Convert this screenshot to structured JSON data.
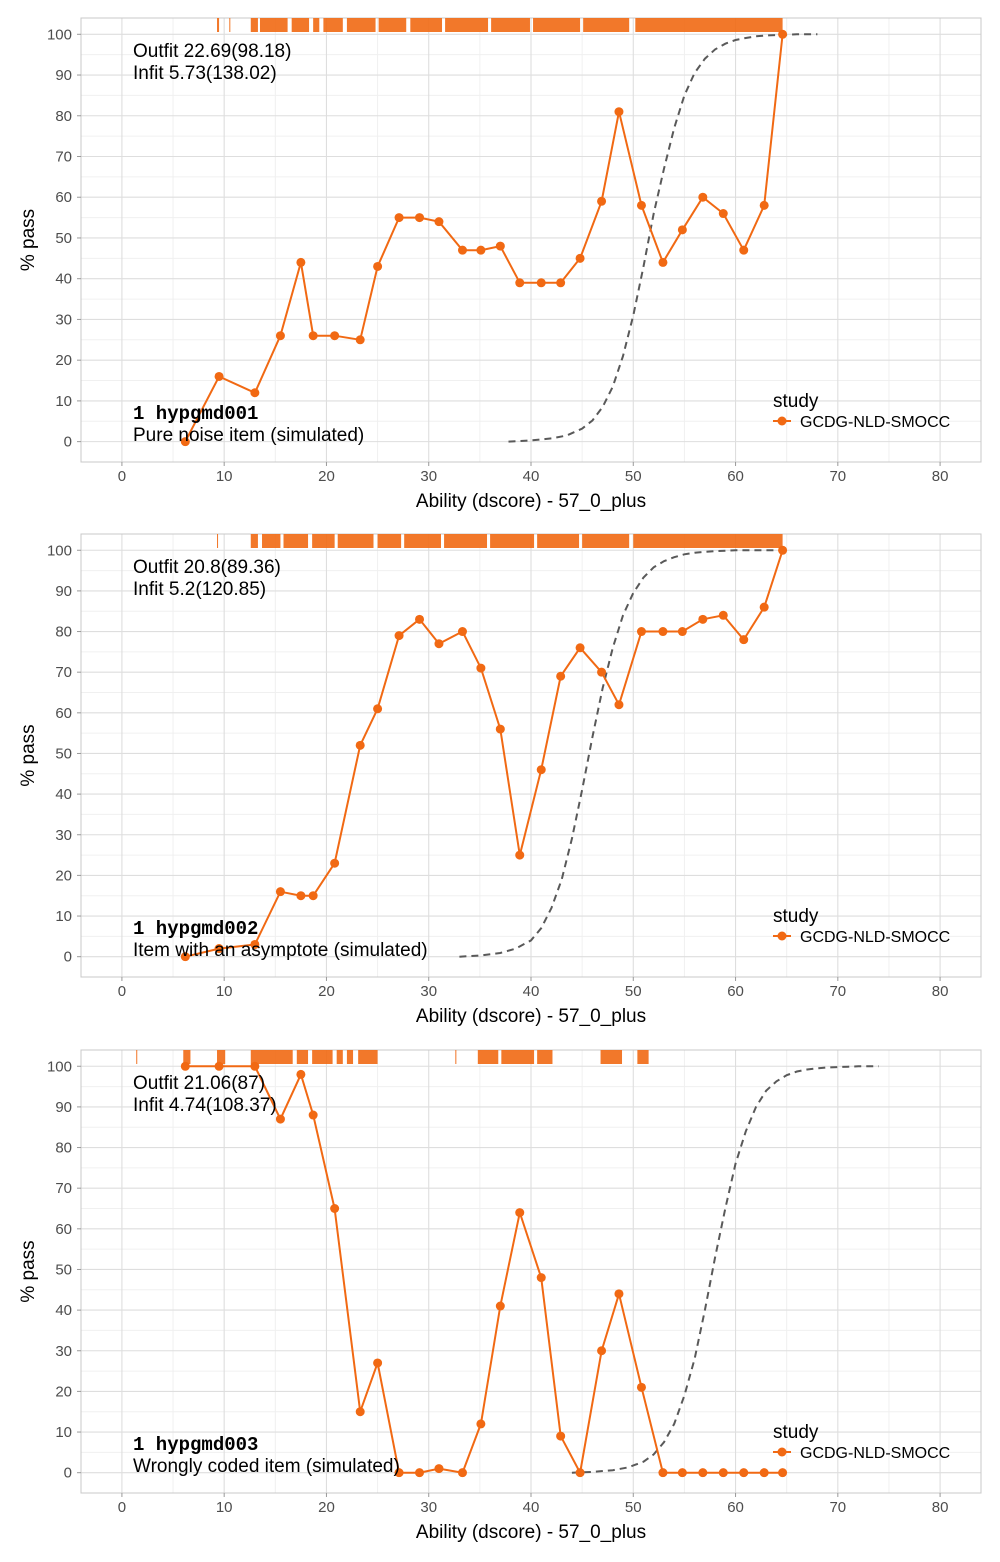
{
  "chart_data": [
    {
      "type": "line",
      "item_number": "1",
      "item_code": "hypgmd001",
      "item_label": "Pure noise item (simulated)",
      "outfit_text": "Outfit 22.69(98.18)",
      "infit_text": "Infit  5.73(138.02)",
      "xlabel": "Ability (dscore) - 57_0_plus",
      "ylabel": "% pass",
      "xlim": [
        -4,
        84
      ],
      "ylim": [
        -5,
        104
      ],
      "xticks": [
        0,
        10,
        20,
        30,
        40,
        50,
        60,
        70,
        80
      ],
      "yticks": [
        0,
        10,
        20,
        30,
        40,
        50,
        60,
        70,
        80,
        90,
        100
      ],
      "grid": true,
      "legend": {
        "title": "study",
        "entries": [
          "GCDG-NLD-SMOCC"
        ],
        "position": "right"
      },
      "series": [
        {
          "name": "GCDG-NLD-SMOCC",
          "color": "#f16913",
          "x": [
            6.2,
            9.5,
            13.0,
            15.5,
            17.5,
            18.7,
            20.8,
            23.3,
            25.0,
            27.1,
            29.1,
            31.0,
            33.3,
            35.1,
            37.0,
            38.9,
            41.0,
            42.9,
            44.8,
            46.9,
            48.6,
            50.8,
            52.9,
            54.8,
            56.8,
            58.8,
            60.8,
            62.8,
            64.6
          ],
          "values": [
            0,
            16,
            12,
            26,
            44,
            26,
            26,
            25,
            43,
            55,
            55,
            54,
            47,
            47,
            48,
            39,
            39,
            39,
            45,
            59,
            81,
            58,
            44,
            52,
            60,
            56,
            47,
            58,
            100
          ]
        },
        {
          "name": "model",
          "style": "dashed",
          "color": "#595959",
          "x": [
            37.8,
            40,
            42,
            43.5,
            45,
            46,
            47,
            48,
            49,
            50,
            51,
            52,
            53,
            54,
            55,
            56,
            57,
            58,
            59,
            60,
            61,
            62,
            63,
            64,
            65,
            66,
            68
          ],
          "values": [
            0,
            0.3,
            0.8,
            1.5,
            3.2,
            5.2,
            8.5,
            13.5,
            21,
            31,
            43,
            56,
            67,
            77,
            85,
            90.5,
            94,
            96.3,
            97.7,
            98.6,
            99.1,
            99.5,
            99.7,
            99.8,
            99.9,
            100,
            100
          ]
        }
      ],
      "rug": [
        {
          "from": 9.3,
          "to": 9.5
        },
        {
          "from": 10.5,
          "to": 10.6
        },
        {
          "from": 12.6,
          "to": 13.3
        },
        {
          "from": 13.5,
          "to": 16.2
        },
        {
          "from": 16.6,
          "to": 18.3
        },
        {
          "from": 18.7,
          "to": 19.3
        },
        {
          "from": 19.7,
          "to": 21.6
        },
        {
          "from": 22.0,
          "to": 24.8
        },
        {
          "from": 25.1,
          "to": 27.8
        },
        {
          "from": 28.2,
          "to": 31.3
        },
        {
          "from": 31.6,
          "to": 35.8
        },
        {
          "from": 36.1,
          "to": 39.9
        },
        {
          "from": 40.2,
          "to": 44.8
        },
        {
          "from": 45.1,
          "to": 49.6
        },
        {
          "from": 50.2,
          "to": 64.6
        }
      ]
    },
    {
      "type": "line",
      "item_number": "1",
      "item_code": "hypgmd002",
      "item_label": "Item with an asymptote (simulated)",
      "outfit_text": "Outfit 20.8(89.36)",
      "infit_text": "Infit  5.2(120.85)",
      "xlabel": "Ability (dscore) - 57_0_plus",
      "ylabel": "% pass",
      "xlim": [
        -4,
        84
      ],
      "ylim": [
        -5,
        104
      ],
      "xticks": [
        0,
        10,
        20,
        30,
        40,
        50,
        60,
        70,
        80
      ],
      "yticks": [
        0,
        10,
        20,
        30,
        40,
        50,
        60,
        70,
        80,
        90,
        100
      ],
      "grid": true,
      "legend": {
        "title": "study",
        "entries": [
          "GCDG-NLD-SMOCC"
        ],
        "position": "right"
      },
      "series": [
        {
          "name": "GCDG-NLD-SMOCC",
          "color": "#f16913",
          "x": [
            6.2,
            9.5,
            13.0,
            15.5,
            17.5,
            18.7,
            20.8,
            23.3,
            25.0,
            27.1,
            29.1,
            31.0,
            33.3,
            35.1,
            37.0,
            38.9,
            41.0,
            42.9,
            44.8,
            46.9,
            48.6,
            50.8,
            52.9,
            54.8,
            56.8,
            58.8,
            60.8,
            62.8,
            64.6
          ],
          "values": [
            0,
            2,
            3,
            16,
            15,
            15,
            23,
            52,
            61,
            79,
            83,
            77,
            80,
            71,
            56,
            25,
            46,
            69,
            76,
            70,
            62,
            80,
            80,
            80,
            83,
            84,
            78,
            86,
            100
          ]
        },
        {
          "name": "model",
          "style": "dashed",
          "color": "#595959",
          "x": [
            33,
            35,
            37,
            38.5,
            40,
            41,
            42,
            43,
            44,
            45,
            46,
            47,
            48,
            49,
            50,
            51,
            52,
            53,
            54,
            55,
            56,
            57,
            58,
            59,
            60,
            62,
            64
          ],
          "values": [
            0,
            0.3,
            0.9,
            2,
            4,
            7,
            12,
            19,
            29,
            41,
            54,
            66,
            76,
            84,
            89.5,
            93.3,
            95.8,
            97.3,
            98.3,
            99,
            99.4,
            99.6,
            99.8,
            99.9,
            100,
            100,
            100
          ]
        }
      ],
      "rug": [
        {
          "from": 9.3,
          "to": 9.4
        },
        {
          "from": 12.6,
          "to": 13.3
        },
        {
          "from": 13.7,
          "to": 15.5
        },
        {
          "from": 15.8,
          "to": 18.2
        },
        {
          "from": 18.6,
          "to": 20.8
        },
        {
          "from": 21.1,
          "to": 24.6
        },
        {
          "from": 25.0,
          "to": 27.3
        },
        {
          "from": 27.6,
          "to": 31.2
        },
        {
          "from": 31.5,
          "to": 35.7
        },
        {
          "from": 36.0,
          "to": 40.3
        },
        {
          "from": 40.6,
          "to": 44.7
        },
        {
          "from": 45.0,
          "to": 49.6
        },
        {
          "from": 50.0,
          "to": 64.6
        }
      ]
    },
    {
      "type": "line",
      "item_number": "1",
      "item_code": "hypgmd003",
      "item_label": "Wrongly coded item (simulated)",
      "outfit_text": "Outfit 21.06(87)",
      "infit_text": "Infit  4.74(108.37)",
      "xlabel": "Ability (dscore) - 57_0_plus",
      "ylabel": "% pass",
      "xlim": [
        -4,
        84
      ],
      "ylim": [
        -5,
        104
      ],
      "xticks": [
        0,
        10,
        20,
        30,
        40,
        50,
        60,
        70,
        80
      ],
      "yticks": [
        0,
        10,
        20,
        30,
        40,
        50,
        60,
        70,
        80,
        90,
        100
      ],
      "grid": true,
      "legend": {
        "title": "study",
        "entries": [
          "GCDG-NLD-SMOCC"
        ],
        "position": "right"
      },
      "series": [
        {
          "name": "GCDG-NLD-SMOCC",
          "color": "#f16913",
          "x": [
            6.2,
            9.5,
            13.0,
            15.5,
            17.5,
            18.7,
            20.8,
            23.3,
            25.0,
            27.1,
            29.1,
            31.0,
            33.3,
            35.1,
            37.0,
            38.9,
            41.0,
            42.9,
            44.8,
            46.9,
            48.6,
            50.8,
            52.9,
            54.8,
            56.8,
            58.8,
            60.8,
            62.8,
            64.6
          ],
          "values": [
            100,
            100,
            100,
            87,
            98,
            88,
            65,
            15,
            27,
            0,
            0,
            1,
            0,
            12,
            41,
            64,
            48,
            9,
            0,
            30,
            44,
            21,
            0,
            0,
            0,
            0,
            0,
            0,
            0
          ]
        },
        {
          "name": "model",
          "style": "dashed",
          "color": "#595959",
          "x": [
            44,
            46,
            48,
            49.5,
            51,
            52,
            53,
            54,
            55,
            56,
            57,
            58,
            59,
            60,
            61,
            62,
            63,
            64,
            65,
            66,
            67,
            68,
            69,
            70,
            71,
            72,
            74
          ],
          "values": [
            0,
            0.2,
            0.6,
            1.3,
            2.7,
            4.5,
            7.5,
            12,
            19,
            28,
            40,
            53,
            65,
            76,
            84,
            90,
            94,
            96.3,
            97.8,
            98.7,
            99.2,
            99.5,
            99.7,
            99.8,
            99.9,
            100,
            100
          ]
        }
      ],
      "rug": [
        {
          "from": 1.4,
          "to": 1.5
        },
        {
          "from": 6.0,
          "to": 6.7
        },
        {
          "from": 9.3,
          "to": 10.1
        },
        {
          "from": 12.6,
          "to": 16.7
        },
        {
          "from": 17.1,
          "to": 18.2
        },
        {
          "from": 18.6,
          "to": 20.6
        },
        {
          "from": 21.0,
          "to": 21.6
        },
        {
          "from": 22.0,
          "to": 22.6
        },
        {
          "from": 23.1,
          "to": 25.0
        },
        {
          "from": 32.6,
          "to": 32.7
        },
        {
          "from": 34.8,
          "to": 36.8
        },
        {
          "from": 37.1,
          "to": 40.3
        },
        {
          "from": 40.6,
          "to": 42.1
        },
        {
          "from": 46.8,
          "to": 48.9
        },
        {
          "from": 50.4,
          "to": 51.5
        }
      ]
    }
  ]
}
